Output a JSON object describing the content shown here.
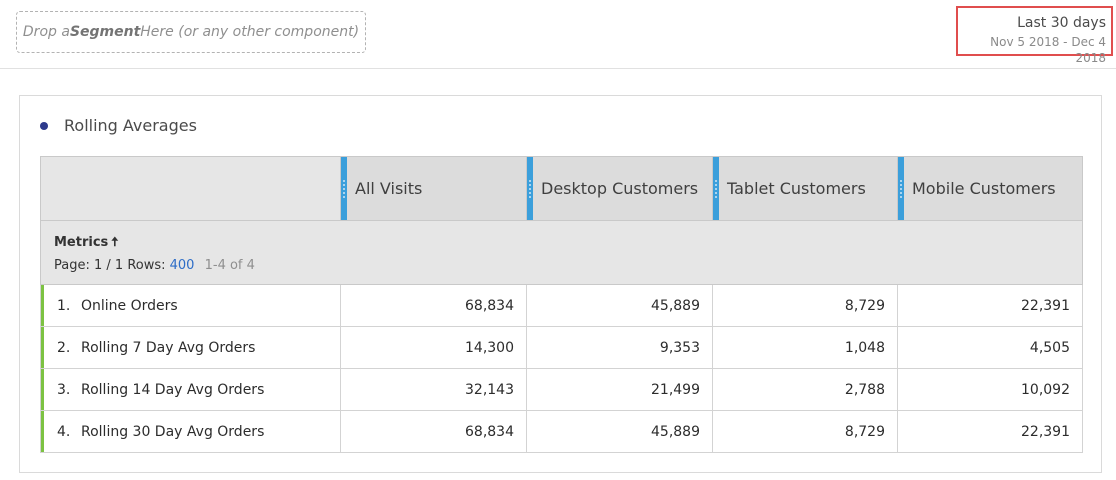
{
  "drop_zone": {
    "prefix": "Drop a ",
    "bold": "Segment",
    "suffix": " Here (or any other component)"
  },
  "date": {
    "label": "Last 30 days",
    "range": "Nov 5 2018 - Dec 4 2018"
  },
  "panel": {
    "title": "Rolling Averages",
    "columns": [
      "All Visits",
      "Desktop Customers",
      "Tablet Customers",
      "Mobile Customers"
    ],
    "metrics_header": "Metrics",
    "sort_icon": "arrow-up-icon",
    "page_label": "Page: 1 / 1",
    "rows_label": "Rows:",
    "rows_value": "400",
    "range_label": "1-4 of 4",
    "rows": [
      {
        "num": "1.",
        "label": "Online Orders",
        "values": [
          "68,834",
          "45,889",
          "8,729",
          "22,391"
        ]
      },
      {
        "num": "2.",
        "label": "Rolling 7 Day Avg Orders",
        "values": [
          "14,300",
          "9,353",
          "1,048",
          "4,505"
        ]
      },
      {
        "num": "3.",
        "label": "Rolling 14 Day Avg Orders",
        "values": [
          "32,143",
          "21,499",
          "2,788",
          "10,092"
        ]
      },
      {
        "num": "4.",
        "label": "Rolling 30 Day Avg Orders",
        "values": [
          "68,834",
          "45,889",
          "8,729",
          "22,391"
        ]
      }
    ]
  },
  "colors": {
    "accent_blue": "#3b9fdb",
    "row_green": "#7cc242",
    "highlight_red": "#e04e4e",
    "dot_navy": "#2d3a8c"
  }
}
